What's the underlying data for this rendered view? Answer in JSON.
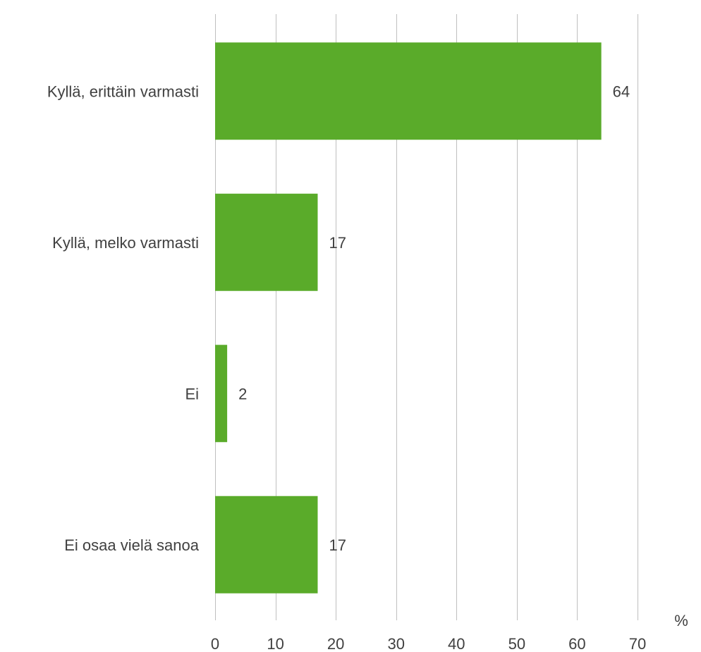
{
  "chart_data": {
    "type": "bar",
    "orientation": "horizontal",
    "categories": [
      "Kyllä, erittäin varmasti",
      "Kyllä, melko varmasti",
      "Ei",
      "Ei osaa vielä sanoa"
    ],
    "values": [
      64,
      17,
      2,
      17
    ],
    "data_labels": [
      "64",
      "17",
      "2",
      "17"
    ],
    "title": "",
    "xlabel": "",
    "ylabel": "",
    "unit_label": "%",
    "xlim": [
      0,
      70
    ],
    "xticks": [
      0,
      10,
      20,
      30,
      40,
      50,
      60,
      70
    ],
    "tick_labels": [
      "0",
      "10",
      "20",
      "30",
      "40",
      "50",
      "60",
      "70"
    ],
    "grid": true,
    "legend": "none",
    "bar_color": "#5aab2a",
    "grid_color": "#bfbfbf",
    "text_color": "#404040"
  }
}
